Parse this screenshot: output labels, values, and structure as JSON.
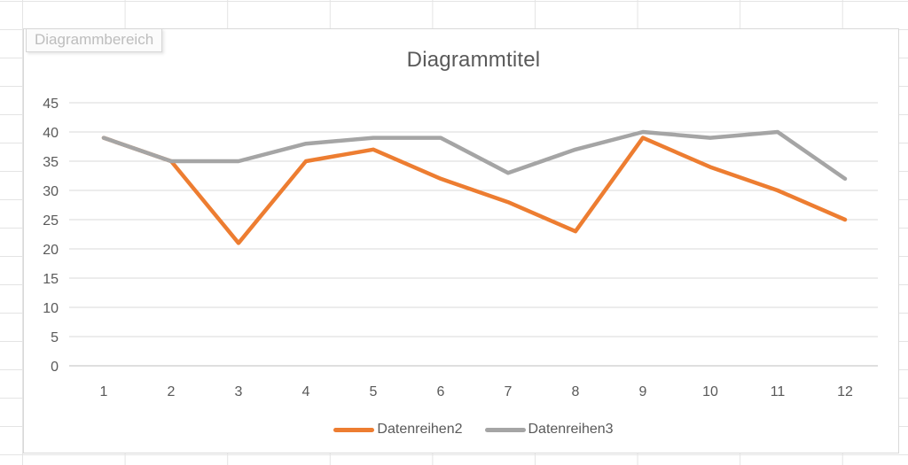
{
  "tooltip": {
    "label": "Diagrammbereich"
  },
  "chart_data": {
    "type": "line",
    "title": "Diagrammtitel",
    "categories": [
      "1",
      "2",
      "3",
      "4",
      "5",
      "6",
      "7",
      "8",
      "9",
      "10",
      "11",
      "12"
    ],
    "series": [
      {
        "name": "Datenreihen2",
        "color": "#ED7D31",
        "values": [
          39,
          35,
          21,
          35,
          37,
          32,
          28,
          23,
          39,
          34,
          30,
          25
        ]
      },
      {
        "name": "Datenreihen3",
        "color": "#A5A5A5",
        "values": [
          39,
          35,
          35,
          38,
          39,
          39,
          33,
          37,
          40,
          39,
          40,
          32
        ]
      }
    ],
    "xlabel": "",
    "ylabel": "",
    "ylim": [
      0,
      45
    ],
    "yticks": [
      0,
      5,
      10,
      15,
      20,
      25,
      30,
      35,
      40,
      45
    ],
    "grid": true,
    "legend_position": "bottom",
    "style": {
      "text_color": "#595959",
      "gridline_color": "#d9d9d9",
      "axis_line_color": "#bfbfbf",
      "tick_font_px": 16
    }
  }
}
